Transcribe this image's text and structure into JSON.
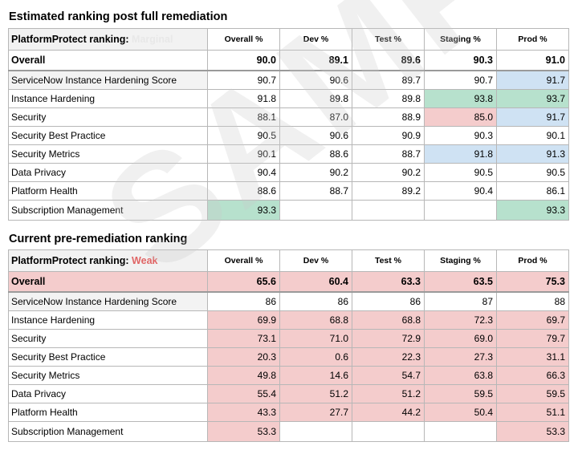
{
  "watermark": "SAMPLE",
  "columns": [
    "Overall %",
    "Dev %",
    "Test %",
    "Staging %",
    "Prod %"
  ],
  "colors": {
    "green": "#b7e1cd",
    "red": "#f4cccc",
    "blue": "#cfe2f3",
    "grey": "#f3f3f3"
  },
  "post": {
    "title": "Estimated ranking post full remediation",
    "label": "PlatformProtect ranking:",
    "rank": "Marginal",
    "overall": {
      "name": "Overall",
      "values": [
        "90.0",
        "89.1",
        "89.6",
        "90.3",
        "91.0"
      ]
    },
    "rows": [
      {
        "name": "ServiceNow Instance Hardening Score",
        "values": [
          "90.7",
          "90.6",
          "89.7",
          "90.7",
          "91.7"
        ],
        "fill": [
          "",
          "",
          "",
          "",
          "blue"
        ],
        "label_fill": "grey"
      },
      {
        "name": "Instance Hardening",
        "values": [
          "91.8",
          "89.8",
          "89.8",
          "93.8",
          "93.7"
        ],
        "fill": [
          "",
          "",
          "",
          "green",
          "green"
        ]
      },
      {
        "name": "Security",
        "values": [
          "88.1",
          "87.0",
          "88.9",
          "85.0",
          "91.7"
        ],
        "fill": [
          "",
          "",
          "",
          "red",
          "blue"
        ]
      },
      {
        "name": "Security Best Practice",
        "values": [
          "90.5",
          "90.6",
          "90.9",
          "90.3",
          "90.1"
        ],
        "fill": [
          "",
          "",
          "",
          "",
          ""
        ]
      },
      {
        "name": "Security Metrics",
        "values": [
          "90.1",
          "88.6",
          "88.7",
          "91.8",
          "91.3"
        ],
        "fill": [
          "",
          "",
          "",
          "blue",
          "blue"
        ]
      },
      {
        "name": "Data Privacy",
        "values": [
          "90.4",
          "90.2",
          "90.2",
          "90.5",
          "90.5"
        ],
        "fill": [
          "",
          "",
          "",
          "",
          ""
        ]
      },
      {
        "name": "Platform Health",
        "values": [
          "88.6",
          "88.7",
          "89.2",
          "90.4",
          "86.1"
        ],
        "fill": [
          "",
          "",
          "",
          "",
          ""
        ]
      },
      {
        "name": "Subscription Management",
        "values": [
          "93.3",
          "",
          "",
          "",
          "93.3"
        ],
        "fill": [
          "green",
          "",
          "",
          "",
          "green"
        ]
      }
    ]
  },
  "pre": {
    "title": "Current pre-remediation ranking",
    "label": "PlatformProtect ranking:",
    "rank": "Weak",
    "overall": {
      "name": "Overall",
      "values": [
        "65.6",
        "60.4",
        "63.3",
        "63.5",
        "75.3"
      ]
    },
    "rows": [
      {
        "name": "ServiceNow Instance Hardening Score",
        "values": [
          "86",
          "86",
          "86",
          "87",
          "88"
        ],
        "fill": [
          "",
          "",
          "",
          "",
          ""
        ],
        "label_fill": "grey"
      },
      {
        "name": "Instance Hardening",
        "values": [
          "69.9",
          "68.8",
          "68.8",
          "72.3",
          "69.7"
        ],
        "fill": [
          "red",
          "red",
          "red",
          "red",
          "red"
        ]
      },
      {
        "name": "Security",
        "values": [
          "73.1",
          "71.0",
          "72.9",
          "69.0",
          "79.7"
        ],
        "fill": [
          "red",
          "red",
          "red",
          "red",
          "red"
        ]
      },
      {
        "name": "Security Best Practice",
        "values": [
          "20.3",
          "0.6",
          "22.3",
          "27.3",
          "31.1"
        ],
        "fill": [
          "red",
          "red",
          "red",
          "red",
          "red"
        ]
      },
      {
        "name": "Security Metrics",
        "values": [
          "49.8",
          "14.6",
          "54.7",
          "63.8",
          "66.3"
        ],
        "fill": [
          "red",
          "red",
          "red",
          "red",
          "red"
        ]
      },
      {
        "name": "Data Privacy",
        "values": [
          "55.4",
          "51.2",
          "51.2",
          "59.5",
          "59.5"
        ],
        "fill": [
          "red",
          "red",
          "red",
          "red",
          "red"
        ]
      },
      {
        "name": "Platform Health",
        "values": [
          "43.3",
          "27.7",
          "44.2",
          "50.4",
          "51.1"
        ],
        "fill": [
          "red",
          "red",
          "red",
          "red",
          "red"
        ]
      },
      {
        "name": "Subscription Management",
        "values": [
          "53.3",
          "",
          "",
          "",
          "53.3"
        ],
        "fill": [
          "red",
          "",
          "",
          "",
          "red"
        ]
      }
    ]
  }
}
